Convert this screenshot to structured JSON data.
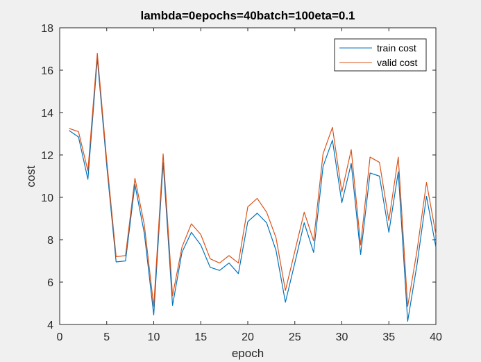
{
  "chart_data": {
    "type": "line",
    "title": "lambda=0epochs=40batch=100eta=0.1",
    "xlabel": "epoch",
    "ylabel": "cost",
    "xlim": [
      0,
      40
    ],
    "ylim": [
      4,
      18
    ],
    "x_ticks": [
      0,
      5,
      10,
      15,
      20,
      25,
      30,
      35,
      40
    ],
    "y_ticks": [
      4,
      6,
      8,
      10,
      12,
      14,
      16,
      18
    ],
    "legend_position": "top-right",
    "grid": false,
    "x": [
      1,
      2,
      3,
      4,
      5,
      6,
      7,
      8,
      9,
      10,
      11,
      12,
      13,
      14,
      15,
      16,
      17,
      18,
      19,
      20,
      21,
      22,
      23,
      24,
      25,
      26,
      27,
      28,
      29,
      30,
      31,
      32,
      33,
      34,
      35,
      36,
      37,
      38,
      39,
      40
    ],
    "series": [
      {
        "name": "train cost",
        "color": "#0072BD",
        "values": [
          13.15,
          12.85,
          10.85,
          16.55,
          11.5,
          6.95,
          7.0,
          10.6,
          8.3,
          4.45,
          11.65,
          4.9,
          7.4,
          8.35,
          7.75,
          6.7,
          6.55,
          6.9,
          6.4,
          8.85,
          9.25,
          8.8,
          7.5,
          5.05,
          6.9,
          8.8,
          7.4,
          11.45,
          12.7,
          9.75,
          11.6,
          7.3,
          11.15,
          11.0,
          8.35,
          11.2,
          4.15,
          6.85,
          10.05,
          7.65
        ]
      },
      {
        "name": "valid cost",
        "color": "#D95319",
        "values": [
          13.25,
          13.1,
          11.25,
          16.8,
          11.75,
          7.2,
          7.25,
          10.9,
          8.7,
          4.85,
          12.05,
          5.35,
          7.65,
          8.75,
          8.25,
          7.1,
          6.9,
          7.25,
          6.9,
          9.55,
          9.95,
          9.3,
          8.1,
          5.6,
          7.45,
          9.3,
          7.95,
          12.05,
          13.3,
          10.25,
          12.25,
          7.75,
          11.9,
          11.65,
          8.9,
          11.9,
          4.85,
          7.5,
          10.7,
          8.25
        ]
      }
    ]
  }
}
